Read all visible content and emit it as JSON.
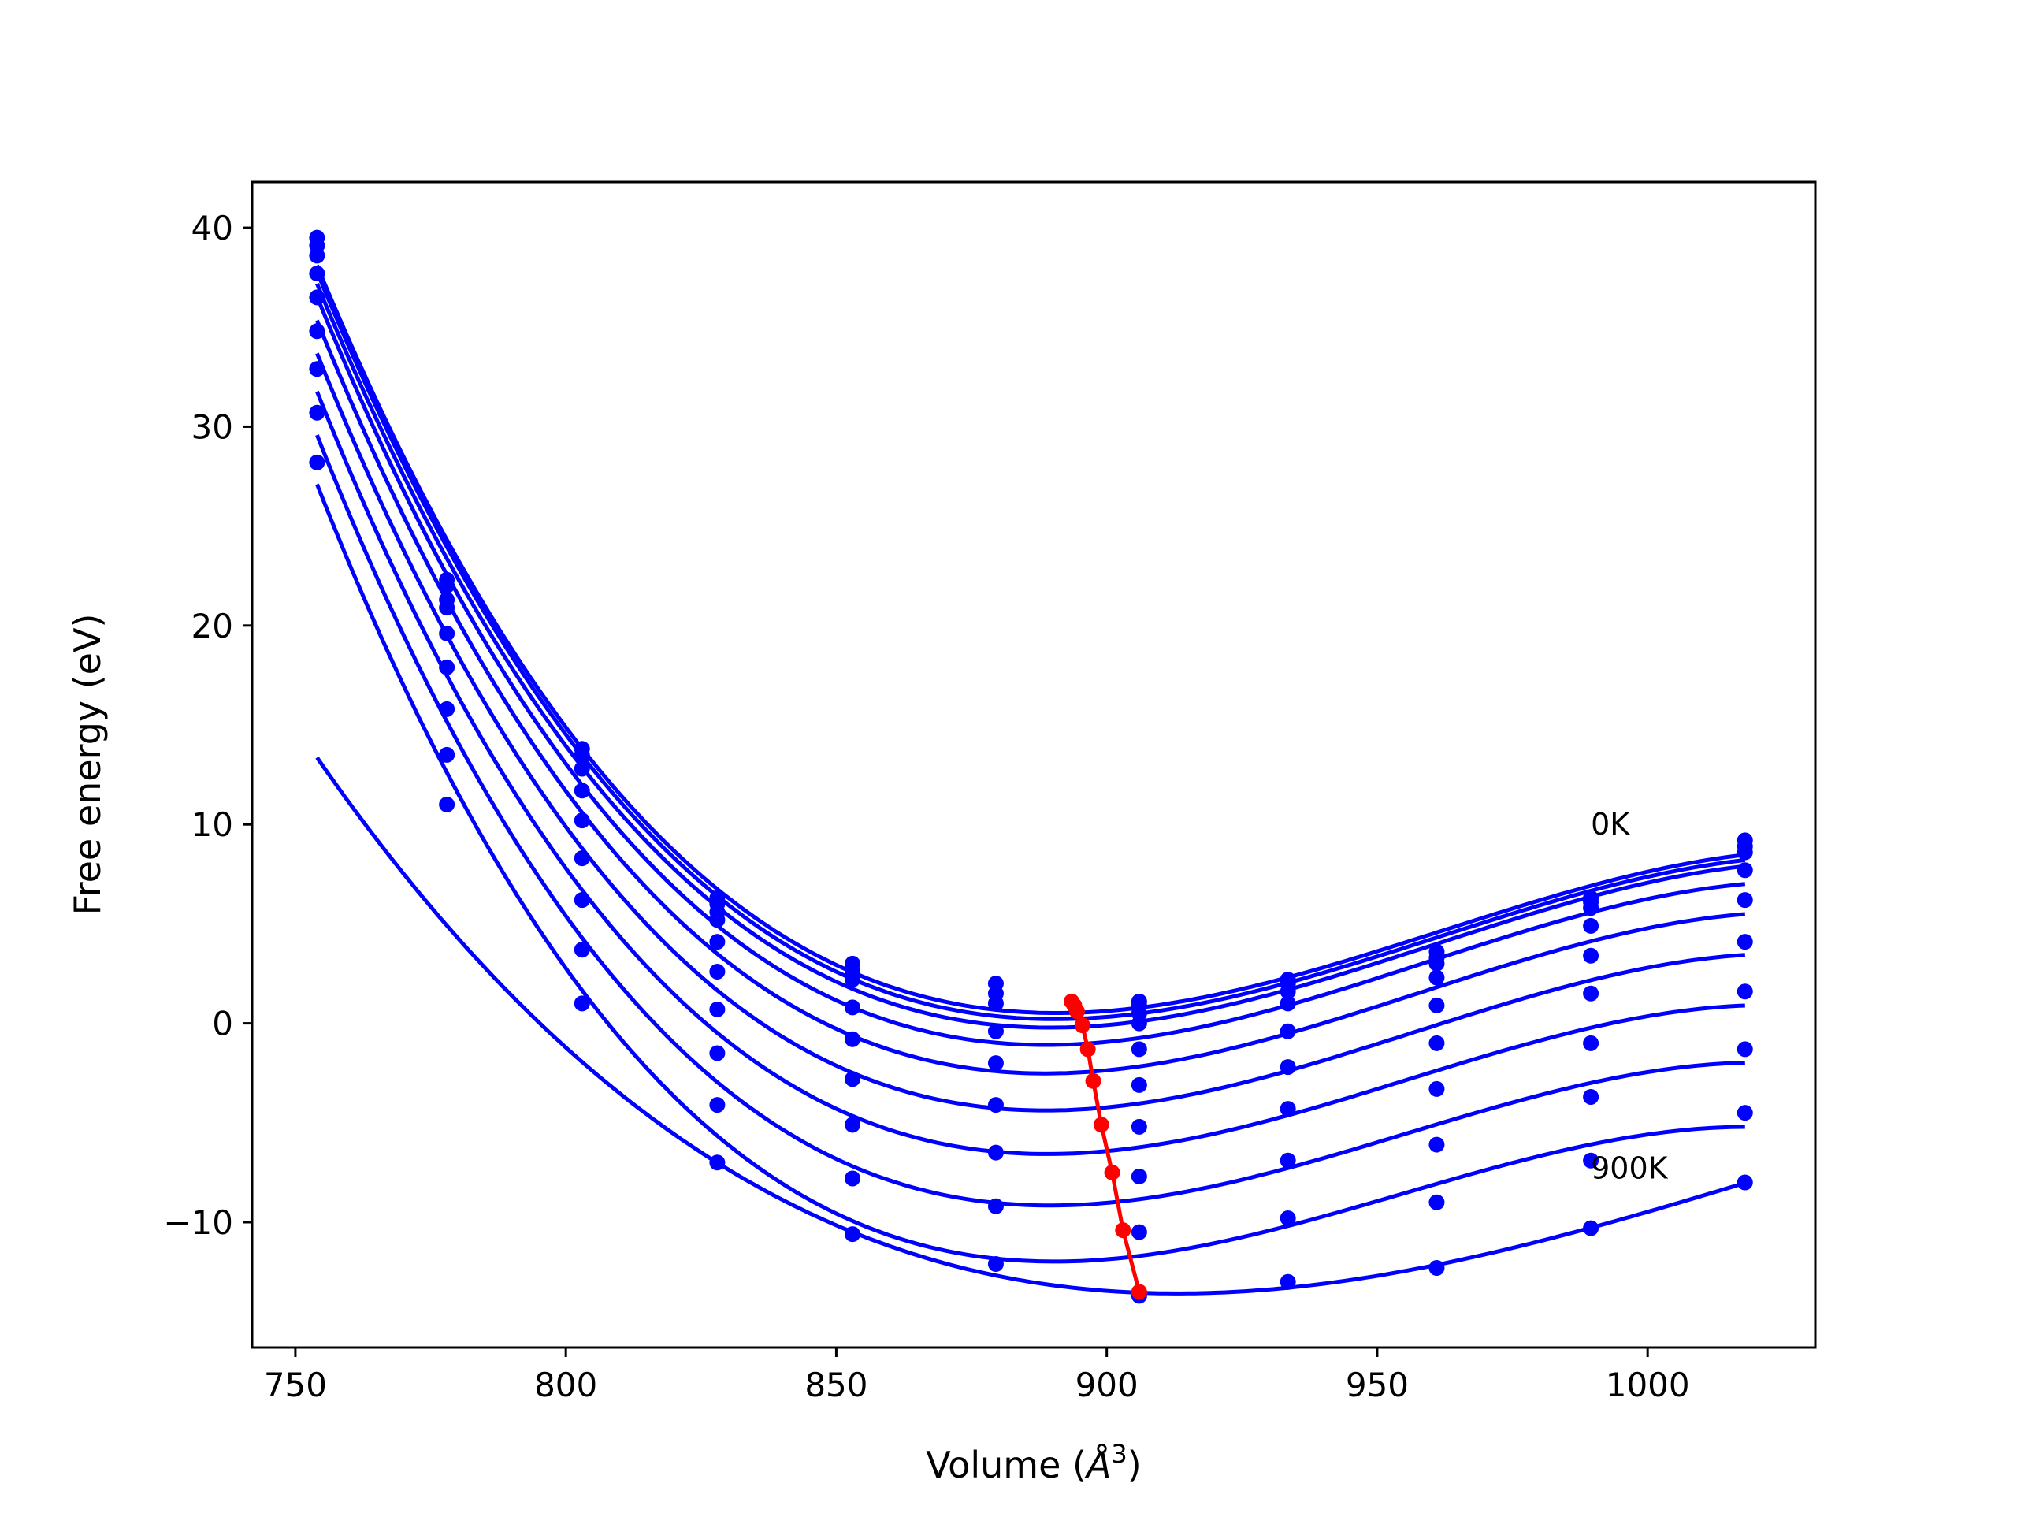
{
  "chart_data": {
    "type": "line",
    "title": "",
    "xlabel": "Volume (Å³)",
    "xlabel_main": "Volume (",
    "xlabel_unit": "Å",
    "xlabel_sup": "3",
    "xlabel_close": ")",
    "ylabel": "Free energy (eV)",
    "xlim": [
      742,
      1031
    ],
    "ylim": [
      -16.3,
      42.3
    ],
    "xticks": [
      750,
      800,
      850,
      900,
      950,
      1000
    ],
    "yticks": [
      40,
      30,
      20,
      10,
      0,
      -10
    ],
    "ytick_labels": [
      "40",
      "30",
      "20",
      "10",
      "0",
      "−10"
    ],
    "grid": false,
    "x_points": [
      754,
      778,
      803,
      828,
      853,
      879.5,
      906,
      933.5,
      961,
      989.5,
      1018
    ],
    "series": [
      {
        "y": [
          39.5,
          22.3,
          13.8,
          6.3,
          3.0,
          2.0,
          1.1,
          2.2,
          3.6,
          6.3,
          9.2
        ]
      },
      {
        "y": [
          39.1,
          22.0,
          13.5,
          6.0,
          2.6,
          1.5,
          0.9,
          2.0,
          3.3,
          6.1,
          8.9
        ]
      },
      {
        "y": [
          38.6,
          21.3,
          12.8,
          5.6,
          2.2,
          1.0,
          0.5,
          1.6,
          3.0,
          5.8,
          8.6
        ]
      },
      {
        "y": [
          37.7,
          20.9,
          11.7,
          5.2,
          0.8,
          -0.4,
          0.0,
          1.0,
          2.3,
          4.9,
          7.7
        ]
      },
      {
        "y": [
          36.5,
          19.6,
          10.2,
          4.1,
          -0.8,
          -2.0,
          -1.3,
          -0.4,
          0.9,
          3.4,
          6.2
        ]
      },
      {
        "y": [
          34.8,
          17.9,
          8.3,
          2.6,
          -2.8,
          -4.1,
          -3.1,
          -2.2,
          -1.0,
          1.5,
          4.1
        ]
      },
      {
        "y": [
          32.9,
          15.8,
          6.2,
          0.7,
          -5.1,
          -6.5,
          -5.2,
          -4.3,
          -3.3,
          -1.0,
          1.6
        ]
      },
      {
        "y": [
          30.7,
          13.5,
          3.7,
          -1.5,
          -7.8,
          -9.2,
          -7.7,
          -6.9,
          -6.1,
          -3.7,
          -1.3
        ]
      },
      {
        "y": [
          28.2,
          11.0,
          1.0,
          -4.1,
          -10.6,
          -12.1,
          -10.5,
          -9.8,
          -9.0,
          -6.9,
          -4.5
        ]
      },
      {
        "y": [
          null,
          null,
          null,
          -7.0,
          null,
          null,
          -13.7,
          -13.0,
          -12.3,
          -10.3,
          -8.0
        ]
      }
    ],
    "minima": {
      "x": [
        893.5,
        894.0,
        894.5,
        895.5,
        896.5,
        897.5,
        899.0,
        901.0,
        903.0,
        906.0
      ],
      "y": [
        1.1,
        0.9,
        0.6,
        -0.1,
        -1.3,
        -2.9,
        -5.1,
        -7.5,
        -10.4,
        -13.5
      ]
    },
    "annotations": [
      {
        "text": "0K",
        "x": 989.5,
        "y": 9.5
      },
      {
        "text": "900K",
        "x": 989.5,
        "y": -7.8
      }
    ],
    "colors": {
      "series": "#0000ff",
      "minima": "#ff0000",
      "axes": "#000000"
    }
  }
}
